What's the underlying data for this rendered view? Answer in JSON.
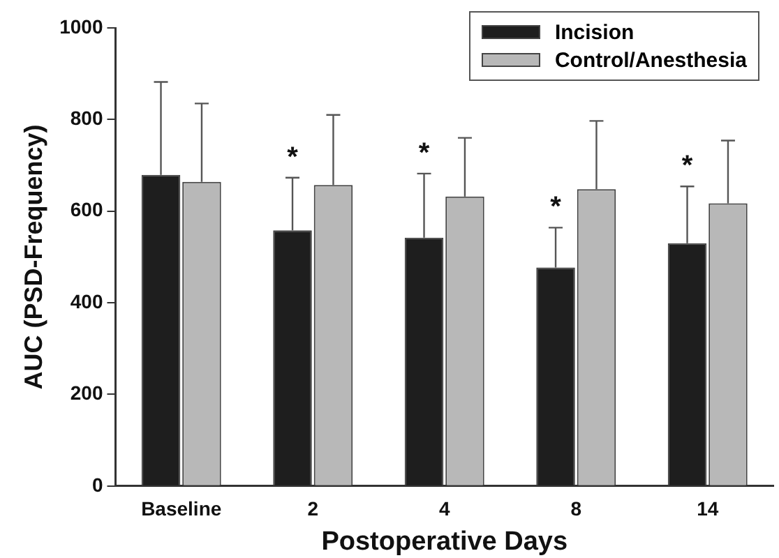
{
  "chart_data": {
    "type": "bar",
    "xlabel": "Postoperative Days",
    "ylabel": "AUC (PSD-Frequency)",
    "categories": [
      "Baseline",
      "2",
      "4",
      "8",
      "14"
    ],
    "series": [
      {
        "name": "Incision",
        "color": "#1e1e1e",
        "values": [
          679,
          558,
          542,
          477,
          530
        ],
        "errors": [
          [
            679,
            882
          ],
          [
            558,
            673
          ],
          [
            542,
            682
          ],
          [
            477,
            564
          ],
          [
            530,
            654
          ]
        ],
        "value_labels": [
          null,
          "*",
          "*",
          "*",
          "*"
        ]
      },
      {
        "name": "Control/Anesthesia",
        "color": "#b8b8b8",
        "values": [
          664,
          657,
          632,
          648,
          617
        ],
        "errors": [
          [
            664,
            835
          ],
          [
            657,
            810
          ],
          [
            632,
            760
          ],
          [
            648,
            797
          ],
          [
            617,
            754
          ]
        ]
      }
    ],
    "ylim": [
      0,
      1000
    ],
    "yticks": [
      0,
      200,
      400,
      600,
      800,
      1000
    ],
    "grid": false,
    "legend": "top right"
  }
}
